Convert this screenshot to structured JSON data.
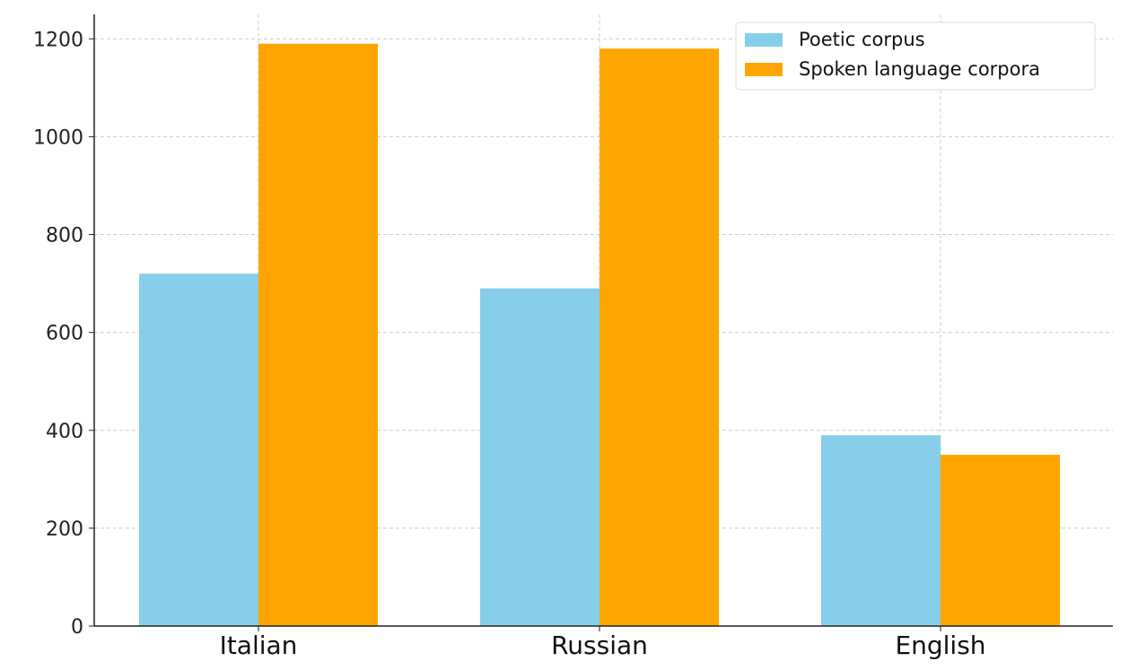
{
  "chart_data": {
    "type": "bar",
    "title": "",
    "xlabel": "",
    "ylabel": "",
    "categories": [
      "Italian",
      "Russian",
      "English"
    ],
    "series": [
      {
        "name": "Poetic corpus",
        "values": [
          720,
          690,
          390
        ],
        "color": "#87CEEB"
      },
      {
        "name": "Spoken language corpora",
        "values": [
          1190,
          1180,
          350
        ],
        "color": "#FFA500"
      }
    ],
    "ylim": [
      0,
      1250
    ],
    "yticks": [
      0,
      200,
      400,
      600,
      800,
      1000,
      1200
    ],
    "grid": true,
    "legend_position": "top-right"
  }
}
